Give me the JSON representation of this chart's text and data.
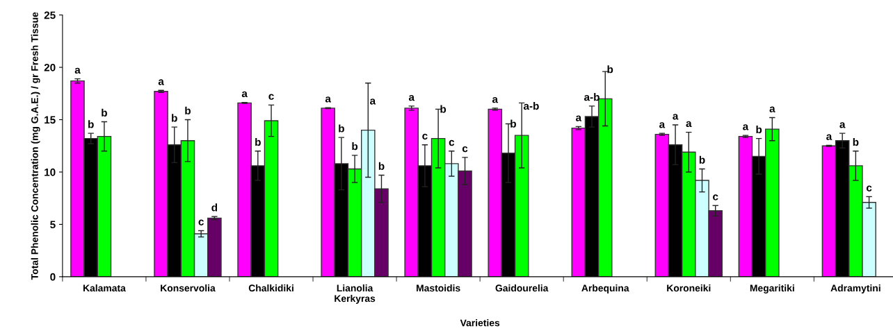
{
  "chart_data": {
    "type": "bar",
    "xlabel": "Varieties",
    "ylabel": "Total Phenolic Concentration (mg G.A.E.) / gr Fresh Tissue",
    "categories": [
      "Kalamata",
      "Konservolia",
      "Chalkidiki",
      "Lianolia\nKerkyras",
      "Mastoidis",
      "Gaidourelia",
      "Arbequina",
      "Koroneiki",
      "Megaritiki",
      "Adramytini"
    ],
    "series": [
      {
        "color": "#ff00ff",
        "values": [
          18.7,
          17.7,
          16.6,
          16.1,
          16.1,
          16.0,
          14.2,
          13.6,
          13.4,
          12.5
        ],
        "errors": [
          0.2,
          0.1,
          0.05,
          0.05,
          0.2,
          0.1,
          0.15,
          0.1,
          0.1,
          0.05
        ],
        "value_labels": [
          "a",
          "a",
          "a",
          "a",
          "a",
          "a",
          "a",
          "a",
          "a",
          "a"
        ]
      },
      {
        "color": "#000000",
        "values": [
          13.2,
          12.6,
          10.6,
          10.8,
          10.6,
          11.8,
          15.3,
          12.6,
          11.5,
          13.0
        ],
        "errors": [
          0.5,
          1.7,
          1.4,
          2.5,
          2.0,
          2.8,
          1.0,
          1.9,
          1.7,
          0.7
        ],
        "value_labels": [
          "b",
          "b",
          "b",
          "b",
          "c",
          "b",
          "a-b",
          "a",
          "b",
          "a"
        ]
      },
      {
        "color": "#00ff00",
        "values": [
          13.4,
          13.0,
          14.9,
          10.3,
          13.2,
          13.5,
          17.0,
          11.9,
          14.1,
          10.6
        ],
        "errors": [
          1.4,
          2.0,
          1.5,
          1.3,
          2.8,
          3.1,
          2.6,
          1.9,
          1.1,
          1.4
        ],
        "value_labels": [
          "b",
          "b",
          "c",
          "b",
          "b",
          "a-b",
          "b",
          "a",
          "a",
          "b"
        ]
      },
      {
        "color": "#ccffff",
        "values": [
          null,
          4.1,
          null,
          14.0,
          10.8,
          null,
          null,
          9.2,
          null,
          7.1
        ],
        "errors": [
          null,
          0.3,
          null,
          4.5,
          1.2,
          null,
          null,
          1.1,
          null,
          0.55
        ],
        "value_labels": [
          null,
          "c",
          null,
          "a",
          "c",
          null,
          null,
          "b",
          null,
          "c"
        ]
      },
      {
        "color": "#660066",
        "values": [
          null,
          5.6,
          null,
          8.4,
          10.1,
          null,
          null,
          6.3,
          null,
          null
        ],
        "errors": [
          null,
          0.15,
          null,
          1.3,
          1.3,
          null,
          null,
          0.5,
          null,
          null
        ],
        "value_labels": [
          null,
          "d",
          null,
          "b",
          "c",
          null,
          null,
          "c",
          null,
          null
        ]
      }
    ],
    "ylim": [
      0,
      25
    ],
    "yticks": [
      0,
      5,
      10,
      15,
      20,
      25
    ],
    "grid": false,
    "legend": false
  }
}
